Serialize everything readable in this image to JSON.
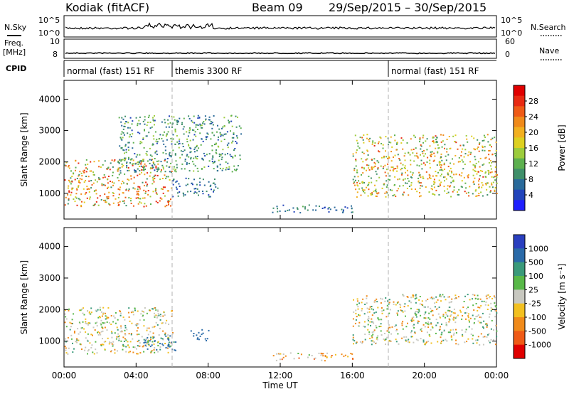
{
  "header": {
    "radar": "Kodiak (fitACF)",
    "beam": "Beam 09",
    "date_range": "29/Sep/2015 – 30/Sep/2015"
  },
  "strip_labels": {
    "nsky": "N.Sky",
    "freq_line1": "Freq.",
    "freq_line2": "[MHz]",
    "cpid": "CPID",
    "nsearch": "N.Search",
    "nave": "Nave",
    "nsky_top": "10^5",
    "nsky_bottom": "10^0",
    "freq_top": "10",
    "freq_bottom": "8",
    "nave_top": "60",
    "nave_bottom": "0"
  },
  "cpid_segments": [
    {
      "label": "normal (fast) 151 RF",
      "start_hour": 0
    },
    {
      "label": "themis 3300 RF",
      "start_hour": 6
    },
    {
      "label": "normal (fast) 151 RF",
      "start_hour": 18
    }
  ],
  "chart_data": [
    {
      "type": "heatmap",
      "panel": "power",
      "xlabel": "",
      "ylabel": "Slant Range [km]",
      "x_ticks": [
        "00:00",
        "04:00",
        "08:00",
        "12:00",
        "16:00",
        "20:00",
        "00:00"
      ],
      "x_range_hours": [
        0,
        24
      ],
      "y_ticks": [
        1000,
        2000,
        3000,
        4000
      ],
      "ylim": [
        180,
        4600
      ],
      "colorbar": {
        "label": "Power [dB]",
        "ticks": [
          "4",
          "8",
          "12",
          "16",
          "20",
          "24",
          "28"
        ],
        "colors": [
          "#1f1fff",
          "#2244bb",
          "#2a6a9a",
          "#3f8f6a",
          "#5db04f",
          "#9ccc3c",
          "#ddd020",
          "#f2b020",
          "#f08a1a",
          "#ef5a16",
          "#e82a12",
          "#e00000"
        ]
      },
      "regions": [
        {
          "h0": 0.0,
          "h1": 6.0,
          "r0": 600,
          "r1": 2100,
          "peak_db": 26
        },
        {
          "h0": 3.0,
          "h1": 9.8,
          "r0": 1700,
          "r1": 3500,
          "peak_db": 14
        },
        {
          "h0": 6.0,
          "h1": 8.5,
          "r0": 900,
          "r1": 1500,
          "peak_db": 10
        },
        {
          "h0": 11.5,
          "h1": 16.0,
          "r0": 400,
          "r1": 650,
          "peak_db": 10
        },
        {
          "h0": 16.0,
          "h1": 24.0,
          "r0": 900,
          "r1": 2900,
          "peak_db": 24
        }
      ]
    },
    {
      "type": "heatmap",
      "panel": "velocity",
      "xlabel": "Time UT",
      "ylabel": "Slant Range [km]",
      "x_ticks": [
        "00:00",
        "04:00",
        "08:00",
        "12:00",
        "16:00",
        "20:00",
        "00:00"
      ],
      "x_range_hours": [
        0,
        24
      ],
      "y_ticks": [
        1000,
        2000,
        3000,
        4000
      ],
      "ylim": [
        180,
        4600
      ],
      "colorbar": {
        "label": "Velocity [m s⁻¹]",
        "ticks": [
          "1000",
          "500",
          "100",
          "25",
          "-25",
          "-100",
          "-500",
          "-1000"
        ],
        "colors": [
          "#2a3fbf",
          "#2a6aa8",
          "#3a9a7a",
          "#58b848",
          "#c8c8c0",
          "#f2c020",
          "#f08a1a",
          "#ef5a16",
          "#e00000"
        ]
      },
      "regions": [
        {
          "h0": 0.0,
          "h1": 6.0,
          "r0": 600,
          "r1": 2100,
          "velocity": 0
        },
        {
          "h0": 4.4,
          "h1": 6.2,
          "r0": 700,
          "r1": 1200,
          "velocity": 150
        },
        {
          "h0": 7.0,
          "h1": 8.0,
          "r0": 1000,
          "r1": 1400,
          "velocity": 300
        },
        {
          "h0": 11.5,
          "h1": 16.0,
          "r0": 400,
          "r1": 650,
          "velocity": -50
        },
        {
          "h0": 16.0,
          "h1": 24.0,
          "r0": 900,
          "r1": 2500,
          "velocity": 0
        }
      ]
    }
  ]
}
